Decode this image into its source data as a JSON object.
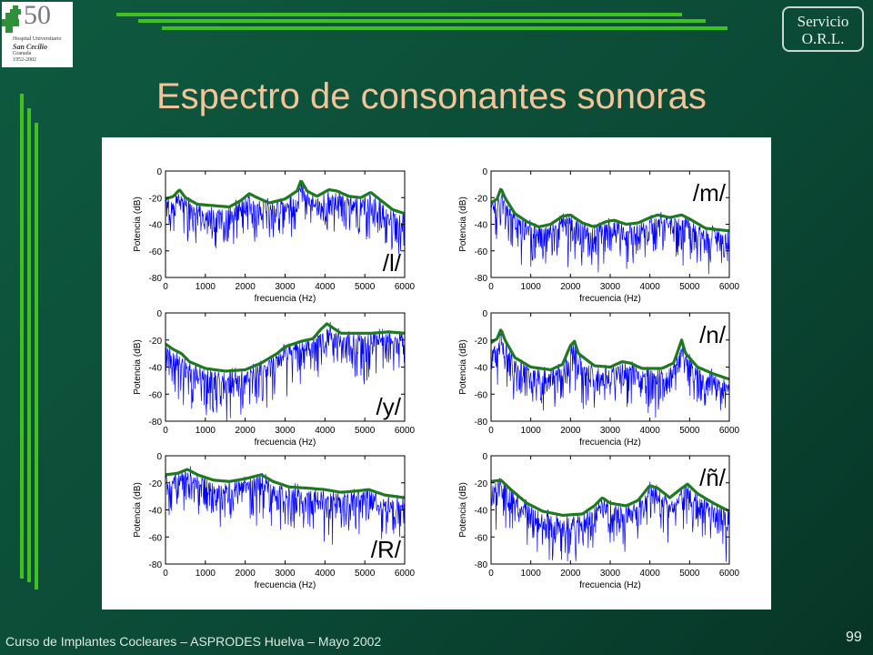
{
  "logo": {
    "number": "50",
    "line1": "Hospital Universitario",
    "line2": "San Cecilio",
    "line3": "Granada",
    "years": "1952-2002"
  },
  "badge": {
    "line1": "Servicio",
    "line2": "O.R.L."
  },
  "title": "Espectro de consonantes sonoras",
  "footer": "Curso de Implantes Cocleares – ASPRODES Huelva – Mayo 2002",
  "page_number": "99",
  "colors": {
    "background": "#0b4a36",
    "accent_lines": "#3fc21e",
    "title": "#f2c49a",
    "spectrum": "#0000ff",
    "envelope": "#1f7a1f"
  },
  "chart_data": [
    {
      "type": "line",
      "label": "/l/",
      "xlabel": "frecuencia (Hz)",
      "ylabel": "Potencia (dB)",
      "xlim": [
        0,
        6000
      ],
      "ylim": [
        -80,
        0
      ],
      "x_ticks": [
        0,
        1000,
        2000,
        3000,
        4000,
        5000,
        6000
      ],
      "y_ticks": [
        0,
        -20,
        -40,
        -60,
        -80
      ],
      "series": [
        {
          "points": [
            [
              0,
              -21
            ],
            [
              200,
              -19
            ],
            [
              350,
              -14
            ],
            [
              500,
              -20
            ],
            [
              800,
              -25
            ],
            [
              1200,
              -26
            ],
            [
              1600,
              -27
            ],
            [
              1900,
              -22
            ],
            [
              2100,
              -17
            ],
            [
              2300,
              -20
            ],
            [
              2600,
              -24
            ],
            [
              3000,
              -21
            ],
            [
              3300,
              -15
            ],
            [
              3400,
              -7
            ],
            [
              3550,
              -15
            ],
            [
              3800,
              -19
            ],
            [
              4100,
              -14
            ],
            [
              4300,
              -15
            ],
            [
              4600,
              -19
            ],
            [
              4900,
              -20
            ],
            [
              5150,
              -16
            ],
            [
              5400,
              -22
            ],
            [
              5700,
              -29
            ],
            [
              6000,
              -32
            ]
          ]
        }
      ],
      "label_pos": "bottom-right"
    },
    {
      "type": "line",
      "label": "/m/",
      "xlabel": "frecuencia (Hz)",
      "ylabel": "Potencia (dB)",
      "xlim": [
        0,
        6000
      ],
      "ylim": [
        -80,
        0
      ],
      "x_ticks": [
        0,
        1000,
        2000,
        3000,
        4000,
        5000,
        6000
      ],
      "y_ticks": [
        0,
        -20,
        -40,
        -60,
        -80
      ],
      "series": [
        {
          "points": [
            [
              0,
              -24
            ],
            [
              150,
              -21
            ],
            [
              250,
              -13
            ],
            [
              350,
              -20
            ],
            [
              600,
              -32
            ],
            [
              900,
              -38
            ],
            [
              1200,
              -42
            ],
            [
              1500,
              -40
            ],
            [
              1800,
              -34
            ],
            [
              2000,
              -33
            ],
            [
              2300,
              -39
            ],
            [
              2600,
              -42
            ],
            [
              2900,
              -38
            ],
            [
              3100,
              -37
            ],
            [
              3400,
              -40
            ],
            [
              3700,
              -39
            ],
            [
              4000,
              -35
            ],
            [
              4200,
              -33
            ],
            [
              4500,
              -35
            ],
            [
              4800,
              -33
            ],
            [
              5000,
              -36
            ],
            [
              5400,
              -43
            ],
            [
              6000,
              -45
            ]
          ]
        }
      ],
      "label_pos": "top-right"
    },
    {
      "type": "line",
      "label": "/y/",
      "xlabel": "frecuencia (Hz)",
      "ylabel": "Potencia (dB)",
      "xlim": [
        0,
        6000
      ],
      "ylim": [
        -80,
        0
      ],
      "x_ticks": [
        0,
        1000,
        2000,
        3000,
        4000,
        5000,
        6000
      ],
      "y_ticks": [
        0,
        -20,
        -40,
        -60,
        -80
      ],
      "series": [
        {
          "points": [
            [
              0,
              -23
            ],
            [
              200,
              -27
            ],
            [
              400,
              -30
            ],
            [
              600,
              -36
            ],
            [
              1000,
              -41
            ],
            [
              1500,
              -43
            ],
            [
              2000,
              -42
            ],
            [
              2400,
              -37
            ],
            [
              2800,
              -30
            ],
            [
              3000,
              -25
            ],
            [
              3400,
              -21
            ],
            [
              3700,
              -19
            ],
            [
              3900,
              -12
            ],
            [
              4050,
              -8
            ],
            [
              4200,
              -11
            ],
            [
              4400,
              -15
            ],
            [
              4800,
              -15
            ],
            [
              5200,
              -15
            ],
            [
              5600,
              -14
            ],
            [
              6000,
              -15
            ]
          ]
        }
      ],
      "label_pos": "bottom-right"
    },
    {
      "type": "line",
      "label": "/n/",
      "xlabel": "frecuencia (Hz)",
      "ylabel": "Potencia (dB)",
      "xlim": [
        0,
        6000
      ],
      "ylim": [
        -80,
        0
      ],
      "x_ticks": [
        0,
        1000,
        2000,
        3000,
        4000,
        5000,
        6000
      ],
      "y_ticks": [
        0,
        -20,
        -40,
        -60,
        -80
      ],
      "series": [
        {
          "points": [
            [
              0,
              -22
            ],
            [
              150,
              -19
            ],
            [
              250,
              -12
            ],
            [
              350,
              -20
            ],
            [
              600,
              -33
            ],
            [
              1000,
              -40
            ],
            [
              1500,
              -42
            ],
            [
              1800,
              -38
            ],
            [
              2000,
              -24
            ],
            [
              2100,
              -21
            ],
            [
              2200,
              -30
            ],
            [
              2600,
              -39
            ],
            [
              3000,
              -40
            ],
            [
              3300,
              -36
            ],
            [
              3500,
              -37
            ],
            [
              3800,
              -41
            ],
            [
              4300,
              -41
            ],
            [
              4600,
              -37
            ],
            [
              4800,
              -20
            ],
            [
              4900,
              -30
            ],
            [
              5200,
              -40
            ],
            [
              5600,
              -45
            ],
            [
              6000,
              -49
            ]
          ]
        }
      ],
      "label_pos": "top-right"
    },
    {
      "type": "line",
      "label": "/R/",
      "xlabel": "frecuencia (Hz)",
      "ylabel": "Potencia (dB)",
      "xlim": [
        0,
        6000
      ],
      "ylim": [
        -80,
        0
      ],
      "x_ticks": [
        0,
        1000,
        2000,
        3000,
        4000,
        5000,
        6000
      ],
      "y_ticks": [
        0,
        -20,
        -40,
        -60,
        -80
      ],
      "series": [
        {
          "points": [
            [
              0,
              -14
            ],
            [
              300,
              -13
            ],
            [
              550,
              -10
            ],
            [
              800,
              -14
            ],
            [
              1200,
              -18
            ],
            [
              1600,
              -19
            ],
            [
              2000,
              -17
            ],
            [
              2400,
              -14
            ],
            [
              2700,
              -19
            ],
            [
              3100,
              -23
            ],
            [
              3600,
              -24
            ],
            [
              4000,
              -25
            ],
            [
              4400,
              -27
            ],
            [
              4800,
              -26
            ],
            [
              5100,
              -25
            ],
            [
              5500,
              -29
            ],
            [
              6000,
              -31
            ]
          ]
        }
      ],
      "label_pos": "bottom-right"
    },
    {
      "type": "line",
      "label": "/ñ/",
      "xlabel": "frecuencia (Hz)",
      "ylabel": "Potencia (dB)",
      "xlim": [
        0,
        6000
      ],
      "ylim": [
        -80,
        0
      ],
      "x_ticks": [
        0,
        1000,
        2000,
        3000,
        4000,
        5000,
        6000
      ],
      "y_ticks": [
        0,
        -20,
        -40,
        -60,
        -80
      ],
      "series": [
        {
          "points": [
            [
              0,
              -19
            ],
            [
              250,
              -18
            ],
            [
              500,
              -25
            ],
            [
              900,
              -35
            ],
            [
              1300,
              -41
            ],
            [
              1800,
              -44
            ],
            [
              2300,
              -43
            ],
            [
              2600,
              -37
            ],
            [
              2800,
              -31
            ],
            [
              3000,
              -35
            ],
            [
              3400,
              -37
            ],
            [
              3700,
              -33
            ],
            [
              4000,
              -22
            ],
            [
              4200,
              -24
            ],
            [
              4500,
              -31
            ],
            [
              4800,
              -24
            ],
            [
              4950,
              -21
            ],
            [
              5200,
              -28
            ],
            [
              5600,
              -35
            ],
            [
              6000,
              -41
            ]
          ]
        }
      ],
      "label_pos": "top-right"
    }
  ]
}
